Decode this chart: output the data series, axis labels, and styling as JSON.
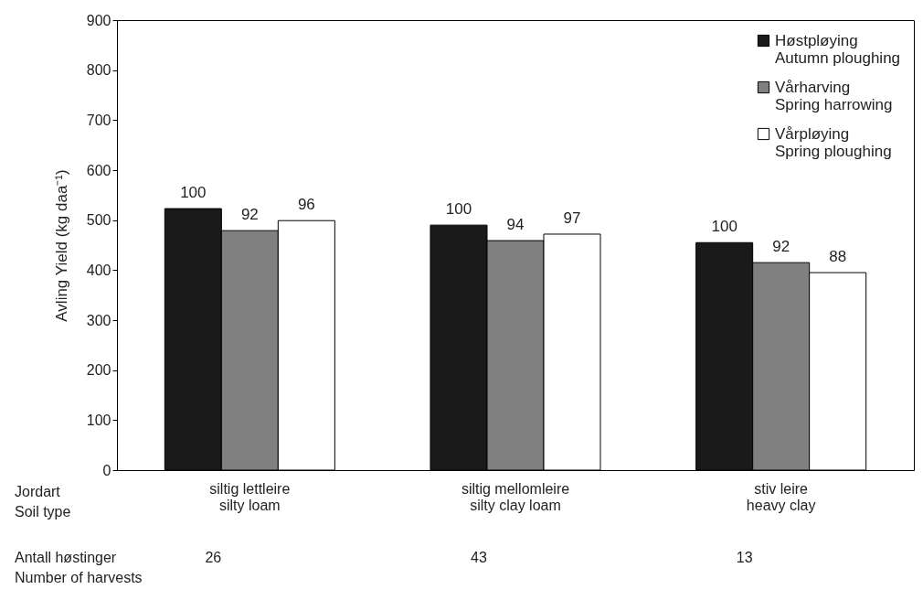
{
  "chart_data": {
    "type": "bar",
    "ylabel": "Avling   Yield (kg daa⁻¹)",
    "categories": [
      "siltig lettleire\nsilty loam",
      "siltig mellomleire\nsilty clay loam",
      "stiv leire\nheavy clay"
    ],
    "series": [
      {
        "name": "Høstpløying\nAutumn ploughing",
        "color": "#1a1a1a",
        "values": [
          523,
          490,
          455
        ]
      },
      {
        "name": "Vårharving\nSpring harrowing",
        "color": "#808080",
        "values": [
          479,
          459,
          415
        ]
      },
      {
        "name": "Vårpløying\nSpring ploughing",
        "color": "#ffffff",
        "values": [
          499,
          472,
          395
        ]
      }
    ],
    "ylim": [
      0,
      900
    ],
    "yticks": [
      0,
      100,
      200,
      300,
      400,
      500,
      600,
      700,
      800,
      900
    ],
    "grid": false,
    "legend": "top right",
    "annotations": [
      "Jordart\nSoil type",
      "Antall høstinger\nNumber of harvests",
      "26",
      "43",
      "13",
      "100",
      "92",
      "96",
      "100",
      "94",
      "97",
      "100",
      "92",
      "88"
    ]
  }
}
